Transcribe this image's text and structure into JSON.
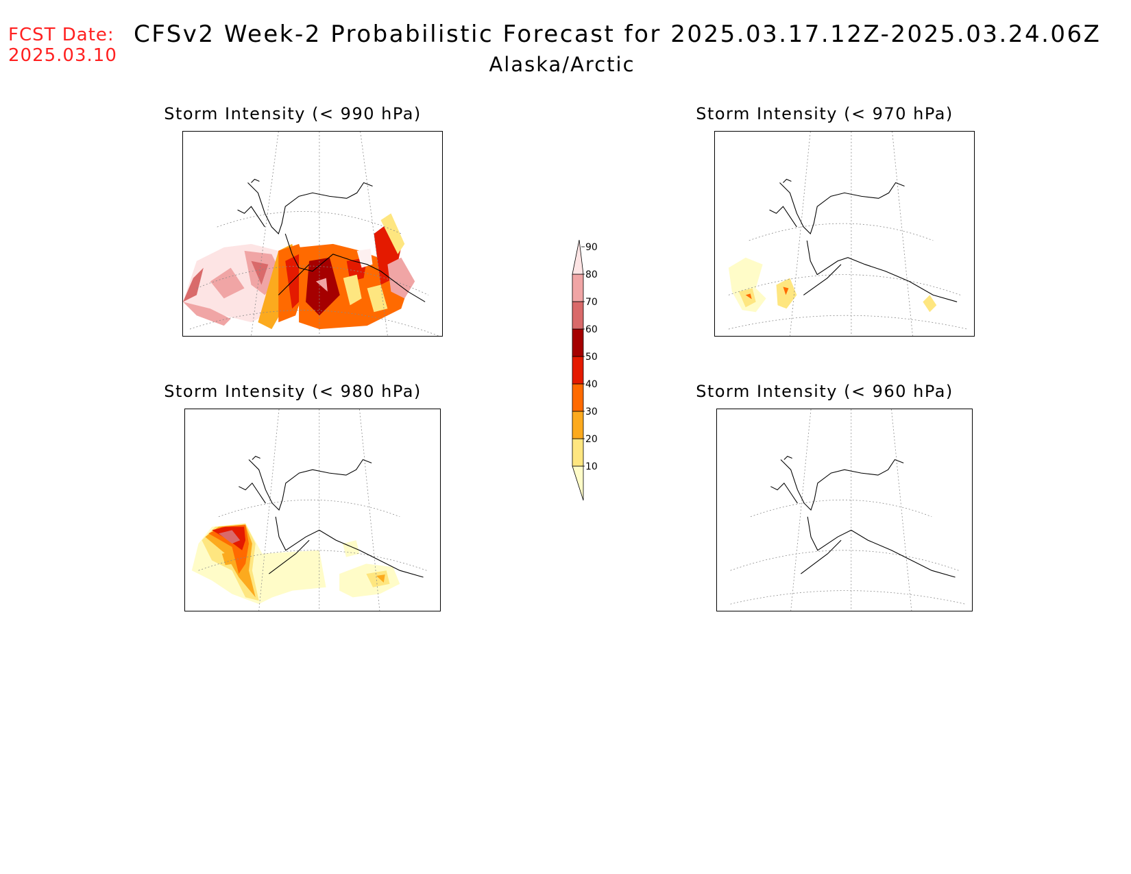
{
  "header": {
    "fcst_label": "FCST Date:",
    "fcst_date": "2025.03.10",
    "title": "CFSv2 Week-2 Probabilistic Forecast for 2025.03.17.12Z-2025.03.24.06Z",
    "region": "Alaska/Arctic"
  },
  "panels": [
    {
      "id": "p990",
      "title": "Storm Intensity (< 990 hPa)"
    },
    {
      "id": "p970",
      "title": "Storm Intensity (< 970 hPa)"
    },
    {
      "id": "p980",
      "title": "Storm Intensity (< 980 hPa)"
    },
    {
      "id": "p960",
      "title": "Storm Intensity (< 960 hPa)"
    }
  ],
  "legend": {
    "levels": [
      "10",
      "20",
      "30",
      "40",
      "50",
      "60",
      "70",
      "80",
      "90"
    ],
    "colors": [
      "#fffcc8",
      "#fee680",
      "#fcaa1e",
      "#ff6a00",
      "#e41a00",
      "#a50000",
      "#d96a6a",
      "#f0a5a5",
      "#fde4e4"
    ]
  }
}
